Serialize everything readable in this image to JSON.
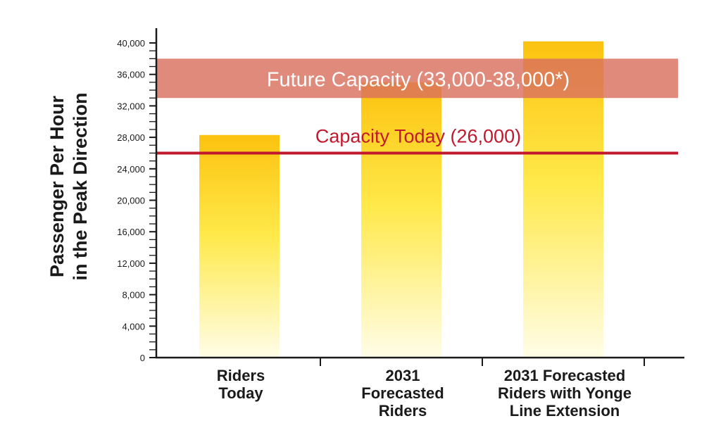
{
  "chart_data": {
    "type": "bar",
    "categories": [
      [
        "Riders",
        "Today"
      ],
      [
        "2031",
        "Forecasted",
        "Riders"
      ],
      [
        "2031 Forecasted",
        "Riders with Yonge",
        "Line Extension"
      ]
    ],
    "values": [
      28300,
      35000,
      40200
    ],
    "ylabel": [
      "Passenger Per Hour",
      "in the Peak Direction"
    ],
    "ylim": [
      0,
      40000
    ],
    "yticks": [
      0,
      4000,
      8000,
      12000,
      16000,
      20000,
      24000,
      28000,
      32000,
      36000,
      40000
    ],
    "ytick_labels": [
      "0",
      "4,000",
      "8,000",
      "12,000",
      "16,000",
      "20,000",
      "24,000",
      "28,000",
      "32,000",
      "36,000",
      "40,000"
    ],
    "minor_tick_step": 1000,
    "grid": false,
    "capacity_band": {
      "label": "Future Capacity (33,000-38,000*)",
      "from": 33000,
      "to": 38000,
      "color": "#d9705e"
    },
    "capacity_line": {
      "label": "Capacity Today (26,000)",
      "value": 26000,
      "color": "#c0182c"
    },
    "bar_gradient": {
      "top": "#fcc20f",
      "bottom": "#fffde8"
    },
    "axis_color": "#1a1a1a"
  }
}
